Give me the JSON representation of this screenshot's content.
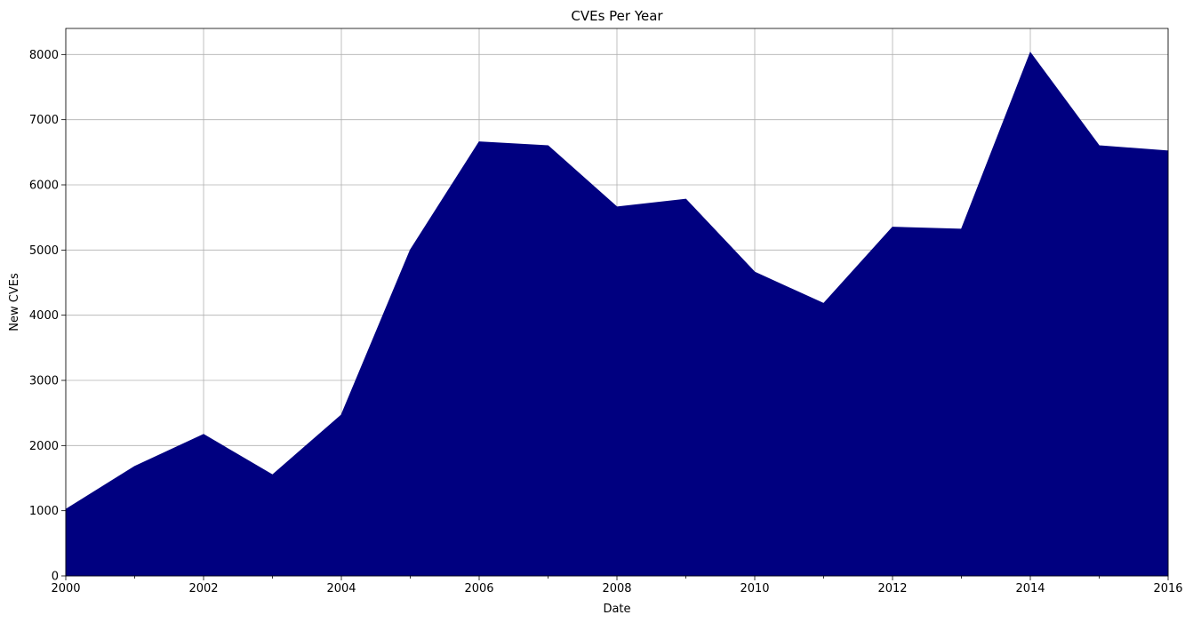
{
  "chart_data": {
    "type": "area",
    "title": "CVEs Per Year",
    "xlabel": "Date",
    "ylabel": "New CVEs",
    "x": [
      2000,
      2001,
      2002,
      2003,
      2004,
      2005,
      2006,
      2007,
      2008,
      2009,
      2010,
      2011,
      2012,
      2013,
      2014,
      2015,
      2016
    ],
    "series": [
      {
        "values": [
          1020,
          1680,
          2170,
          1550,
          2470,
          5000,
          6660,
          6600,
          5660,
          5780,
          4660,
          4180,
          5350,
          5320,
          8030,
          6600,
          6520
        ]
      }
    ],
    "xlim": [
      2000,
      2016
    ],
    "ylim": [
      0,
      8400
    ],
    "x_ticks": [
      2000,
      2002,
      2004,
      2006,
      2008,
      2010,
      2012,
      2014,
      2016
    ],
    "x_tick_labels": [
      "2000",
      "2002",
      "2004",
      "2006",
      "2008",
      "2010",
      "2012",
      "2014",
      "2016"
    ],
    "y_ticks": [
      0,
      1000,
      2000,
      3000,
      4000,
      5000,
      6000,
      7000,
      8000
    ],
    "y_tick_labels": [
      "0",
      "1000",
      "2000",
      "3000",
      "4000",
      "5000",
      "6000",
      "7000",
      "8000"
    ],
    "grid": true,
    "fill_color": "#000080"
  }
}
